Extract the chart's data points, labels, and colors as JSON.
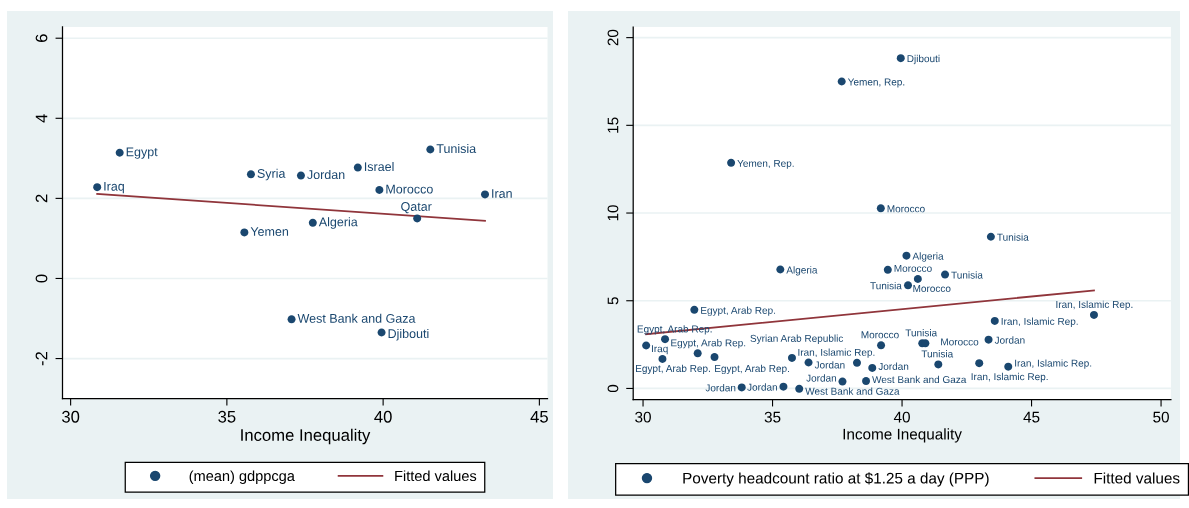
{
  "chart_data": [
    {
      "type": "scatter",
      "xlabel": "Income Inequality",
      "xlim": [
        29.74,
        45.26
      ],
      "ylim": [
        -3,
        6.28
      ],
      "xticks": [
        30,
        35,
        40,
        45
      ],
      "yticks": [
        -2,
        0,
        2,
        4,
        6
      ],
      "grid": "y",
      "legend": "bottom",
      "series": [
        {
          "name": "(mean) gdppcga",
          "marker": "circle",
          "color": "#1a476f",
          "x": [
            30.85,
            31.57,
            35.77,
            37.37,
            39.19,
            41.51,
            39.88,
            43.26,
            41.09,
            37.75,
            35.56,
            37.07,
            39.95
          ],
          "values": [
            2.28,
            3.14,
            2.6,
            2.57,
            2.77,
            3.22,
            2.21,
            2.1,
            1.5,
            1.39,
            1.15,
            -1.02,
            -1.35
          ]
        },
        {
          "name": "Fitted values",
          "type": "line",
          "marker": "none",
          "color": "#90353b",
          "line_style": "solid",
          "x": [
            30.85,
            43.26
          ],
          "values": [
            2.11,
            1.44
          ]
        }
      ],
      "annotations": [
        {
          "text": "Iraq",
          "x": 30.85,
          "y": 2.28
        },
        {
          "text": "Egypt",
          "x": 31.57,
          "y": 3.14
        },
        {
          "text": "Syria",
          "x": 35.77,
          "y": 2.6
        },
        {
          "text": "Jordan",
          "x": 37.37,
          "y": 2.57
        },
        {
          "text": "Israel",
          "x": 39.19,
          "y": 2.77
        },
        {
          "text": "Tunisia",
          "x": 41.51,
          "y": 3.22
        },
        {
          "text": "Morocco",
          "x": 39.88,
          "y": 2.21
        },
        {
          "text": "Iran",
          "x": 43.26,
          "y": 2.1
        },
        {
          "text": "Qatar",
          "x": 41.09,
          "y": 1.5
        },
        {
          "text": "Algeria",
          "x": 37.75,
          "y": 1.39
        },
        {
          "text": "Yemen",
          "x": 35.56,
          "y": 1.15
        },
        {
          "text": "West Bank and Gaza",
          "x": 37.07,
          "y": -1.02
        },
        {
          "text": "Djibouti",
          "x": 39.95,
          "y": -1.35
        }
      ]
    },
    {
      "type": "scatter",
      "xlabel": "Income Inequality",
      "xlim": [
        29.62,
        50.38
      ],
      "ylim": [
        -0.63,
        20.6
      ],
      "xticks": [
        30,
        35,
        40,
        45,
        50
      ],
      "yticks": [
        0,
        5,
        10,
        15,
        20
      ],
      "grid": "y",
      "legend": "bottom",
      "series": [
        {
          "name": "Poverty headcount ratio at $1.25 a day (PPP)",
          "marker": "circle",
          "color": "#1a476f",
          "x": [
            39.95,
            37.67,
            33.4,
            39.18,
            43.43,
            40.17,
            35.3,
            39.45,
            41.66,
            40.61,
            40.23,
            31.98,
            43.58,
            47.41,
            30.85,
            30.12,
            30.75,
            32.11,
            32.76,
            35.75,
            36.39,
            38.26,
            38.85,
            39.19,
            40.78,
            40.9,
            43.34,
            41.4,
            42.98,
            44.1,
            33.81,
            35.42,
            36.03,
            37.7,
            38.61
          ],
          "values": [
            18.83,
            17.5,
            12.86,
            10.27,
            8.65,
            7.57,
            6.78,
            6.76,
            6.49,
            6.24,
            5.88,
            4.48,
            3.85,
            4.19,
            2.81,
            2.45,
            1.68,
            2.0,
            1.79,
            1.74,
            1.48,
            1.46,
            1.17,
            2.46,
            2.57,
            2.57,
            2.78,
            1.37,
            1.44,
            1.24,
            0.06,
            0.1,
            -0.02,
            0.39,
            0.42
          ]
        },
        {
          "name": "Fitted values",
          "type": "line",
          "marker": "none",
          "color": "#90353b",
          "line_style": "solid",
          "x": [
            30.12,
            47.41
          ],
          "values": [
            3.09,
            5.59
          ]
        }
      ],
      "annotations": [
        {
          "text": "Djibouti",
          "x": 39.95,
          "y": 18.83
        },
        {
          "text": "Yemen, Rep.",
          "x": 37.67,
          "y": 17.5
        },
        {
          "text": "Yemen, Rep.",
          "x": 33.4,
          "y": 12.86
        },
        {
          "text": "Morocco",
          "x": 39.18,
          "y": 10.27
        },
        {
          "text": "Tunisia",
          "x": 43.43,
          "y": 8.65
        },
        {
          "text": "Algeria",
          "x": 40.17,
          "y": 7.57
        },
        {
          "text": "Algeria",
          "x": 35.3,
          "y": 6.78
        },
        {
          "text": "Morocco",
          "x": 39.45,
          "y": 6.76
        },
        {
          "text": "Tunisia",
          "x": 41.66,
          "y": 6.49
        },
        {
          "text": "Morocco",
          "x": 40.61,
          "y": 6.24
        },
        {
          "text": "Tunisia",
          "x": 40.23,
          "y": 5.88
        },
        {
          "text": "Egypt, Arab Rep.",
          "x": 31.98,
          "y": 4.48
        },
        {
          "text": "Iran, Islamic Rep.",
          "x": 43.58,
          "y": 3.85
        },
        {
          "text": "Iran, Islamic Rep.",
          "x": 47.41,
          "y": 4.19
        },
        {
          "text": "Iraq",
          "x": 30.85,
          "y": 2.81
        },
        {
          "text": "Egypt, Arab Rep.",
          "x": 30.12,
          "y": 2.45
        },
        {
          "text": "Egypt, Arab Rep.",
          "x": 30.75,
          "y": 1.68
        },
        {
          "text": "Egypt, Arab Rep.",
          "x": 32.11,
          "y": 2.0
        },
        {
          "text": "Egypt, Arab Rep.",
          "x": 32.76,
          "y": 1.79
        },
        {
          "text": "Syrian Arab Republic",
          "x": 35.75,
          "y": 1.74
        },
        {
          "text": "Jordan",
          "x": 36.39,
          "y": 1.48
        },
        {
          "text": "Iran, Islamic Rep.",
          "x": 38.26,
          "y": 1.46
        },
        {
          "text": "Jordan",
          "x": 38.85,
          "y": 1.17
        },
        {
          "text": "Morocco",
          "x": 39.19,
          "y": 2.46
        },
        {
          "text": "Tunisia",
          "x": 40.78,
          "y": 2.57
        },
        {
          "text": "Morocco",
          "x": 40.9,
          "y": 2.57
        },
        {
          "text": "Jordan",
          "x": 43.34,
          "y": 2.78
        },
        {
          "text": "Tunisia",
          "x": 41.4,
          "y": 1.37
        },
        {
          "text": "Iran, Islamic Rep.",
          "x": 42.98,
          "y": 1.44
        },
        {
          "text": "Iran, Islamic Rep.",
          "x": 44.1,
          "y": 1.24
        },
        {
          "text": "Jordan",
          "x": 33.81,
          "y": 0.06
        },
        {
          "text": "Jordan",
          "x": 35.42,
          "y": 0.1
        },
        {
          "text": "West Bank and Gaza",
          "x": 36.03,
          "y": -0.02
        },
        {
          "text": "Jordan",
          "x": 37.7,
          "y": 0.39
        },
        {
          "text": "West Bank and Gaza",
          "x": 38.61,
          "y": 0.42
        }
      ]
    }
  ]
}
